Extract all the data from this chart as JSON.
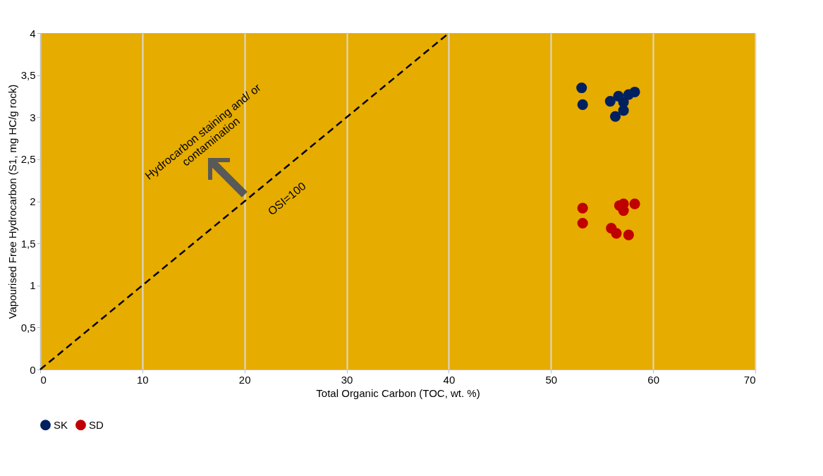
{
  "chart_data": {
    "type": "scatter",
    "xlabel": "Total Organic Carbon (TOC, wt. %)",
    "ylabel": "Vapourised Free Hydrocarbon (S1, mg HC/g rock)",
    "xlim": [
      0,
      70
    ],
    "xticks": [
      0,
      10,
      20,
      30,
      40,
      50,
      60,
      70
    ],
    "ylim": [
      0,
      4
    ],
    "yticks": [
      0,
      {
        "value": 0.5,
        "label": "0,5"
      },
      1,
      {
        "value": 1.5,
        "label": "1,5"
      },
      2,
      {
        "value": 2.5,
        "label": "2,5"
      },
      3,
      {
        "value": 3.5,
        "label": "3,5"
      },
      4
    ],
    "grid": "x",
    "legend": "bottom",
    "marker": "circle",
    "series": [
      {
        "name": "SK",
        "color": "#002060",
        "x": [
          53.0,
          53.1,
          55.8,
          56.6,
          57.6,
          58.2,
          57.1,
          56.3,
          57.1
        ],
        "values": [
          3.35,
          3.15,
          3.19,
          3.25,
          3.27,
          3.3,
          3.08,
          3.01,
          3.18
        ]
      },
      {
        "name": "SD",
        "color": "#c00000",
        "x": [
          53.1,
          53.1,
          56.7,
          57.1,
          57.1,
          58.2,
          55.9,
          56.4,
          57.6
        ],
        "values": [
          1.92,
          1.74,
          1.95,
          1.97,
          1.89,
          1.97,
          1.68,
          1.62,
          1.6
        ]
      },
      {
        "type": "line",
        "color": "#000000",
        "line_style": "dashed",
        "marker": "none",
        "x": [
          0,
          40
        ],
        "values": [
          0,
          4
        ]
      }
    ],
    "annotations": [
      "OSI=100",
      "Hydrocarbon staining and/ or\ncontamination"
    ]
  }
}
